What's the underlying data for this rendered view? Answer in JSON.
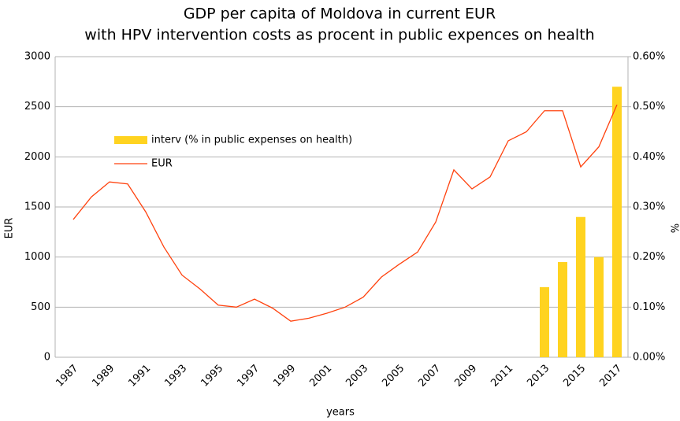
{
  "chart_data": {
    "type": "bar-line",
    "title": "GDP per capita of Moldova in current EUR",
    "subtitle": "with HPV intervention costs as procent in public expences on health",
    "x_label": "years",
    "y_label": "EUR",
    "y2_label": "%",
    "categories": [
      "1987",
      null,
      "1989",
      null,
      "1991",
      null,
      "1993",
      null,
      "1995",
      null,
      "1997",
      null,
      "1999",
      null,
      "2001",
      null,
      "2003",
      null,
      "2005",
      null,
      "2007",
      null,
      "2009",
      null,
      "2011",
      null,
      "2013",
      null,
      "2015",
      null,
      "2017"
    ],
    "series": [
      {
        "name": "interv (% in public expenses on health)",
        "type": "bar",
        "axis": "y2",
        "color": "#ffd320",
        "values": [
          null,
          null,
          null,
          null,
          null,
          null,
          null,
          null,
          null,
          null,
          null,
          null,
          null,
          null,
          null,
          null,
          null,
          null,
          null,
          null,
          null,
          null,
          null,
          null,
          null,
          null,
          0.14,
          0.19,
          0.28,
          0.2,
          0.54
        ]
      },
      {
        "name": "EUR",
        "type": "line",
        "color": "#ff420e",
        "values": [
          1375,
          1600,
          1750,
          1730,
          1450,
          1100,
          820,
          680,
          520,
          500,
          580,
          490,
          360,
          390,
          440,
          500,
          600,
          800,
          930,
          1050,
          1350,
          1870,
          1680,
          1800,
          2160,
          2250,
          2460,
          2460,
          1900,
          2100,
          2520
        ]
      }
    ],
    "ylim": [
      0,
      3000
    ],
    "yticks": [
      0,
      500,
      1000,
      1500,
      2000,
      2500,
      3000
    ],
    "y2lim": [
      0,
      0.6
    ],
    "y2ticks": [
      {
        "value": 0,
        "label": "0.00%"
      },
      {
        "value": 0.1,
        "label": "0.10%"
      },
      {
        "value": 0.2,
        "label": "0.20%"
      },
      {
        "value": 0.3,
        "label": "0.30%"
      },
      {
        "value": 0.4,
        "label": "0.40%"
      },
      {
        "value": 0.5,
        "label": "0.50%"
      },
      {
        "value": 0.6,
        "label": "0.60%"
      }
    ],
    "grid": true,
    "legend": "upper left"
  }
}
